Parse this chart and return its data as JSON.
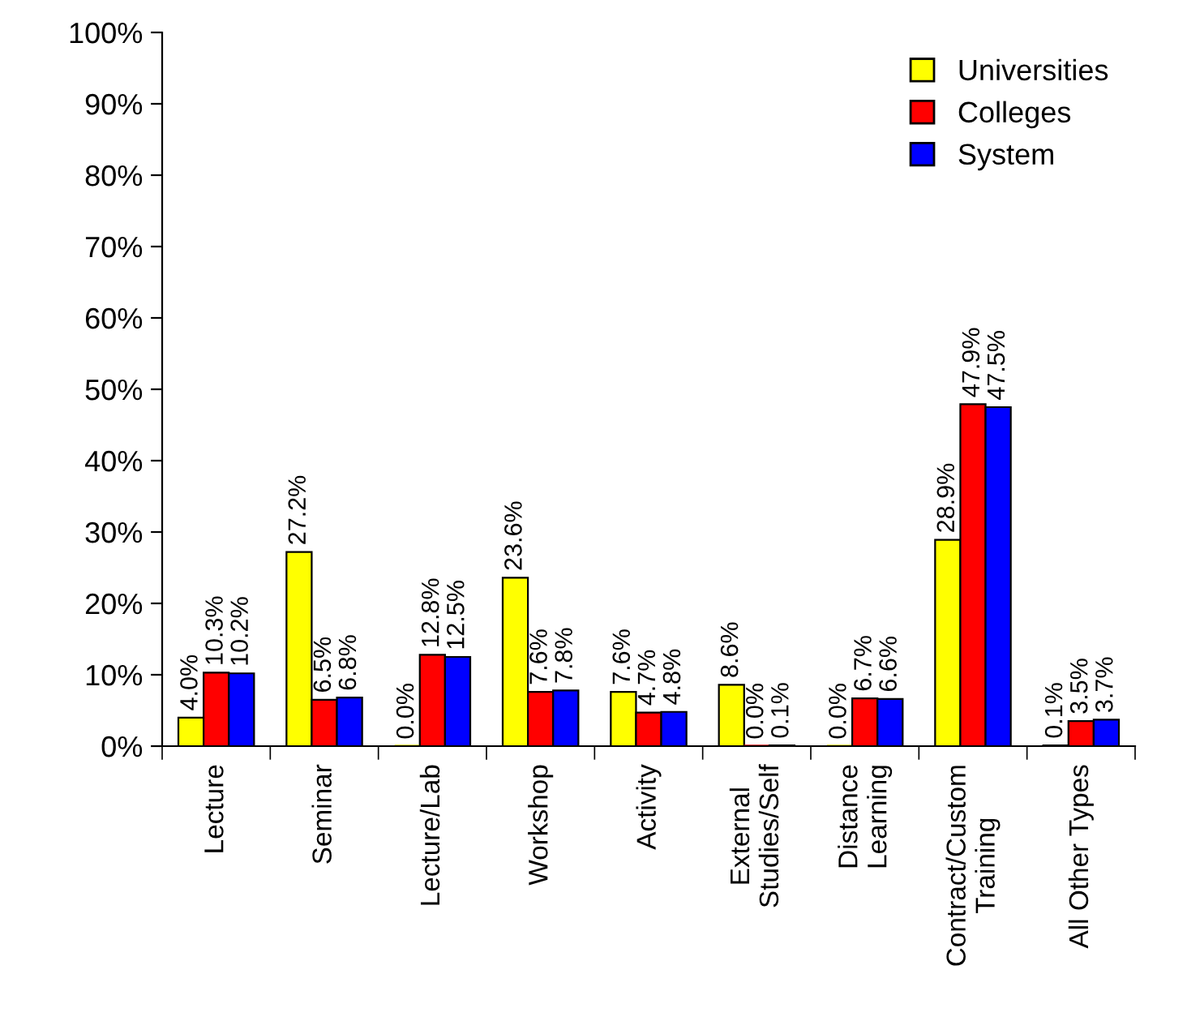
{
  "chart_data": {
    "type": "bar",
    "categories": [
      "Lecture",
      "Seminar",
      "Lecture/Lab",
      "Workshop",
      "Activity",
      "External\nStudies/Self",
      "Distance\nLearning",
      "Contract/Custom\nTraining",
      "All Other Types"
    ],
    "series": [
      {
        "name": "Universities",
        "color": "#ffff00",
        "values": [
          4.0,
          27.2,
          0.0,
          23.6,
          7.6,
          8.6,
          0.0,
          28.9,
          0.1
        ],
        "value_labels": [
          "4.0%",
          "27.2%",
          "0.0%",
          "23.6%",
          "7.6%",
          "8.6%",
          "0.0%",
          "28.9%",
          "0.1%"
        ]
      },
      {
        "name": "Colleges",
        "color": "#ff0000",
        "values": [
          10.3,
          6.5,
          12.8,
          7.6,
          4.7,
          0.0,
          6.7,
          47.9,
          3.5
        ],
        "value_labels": [
          "10.3%",
          "6.5%",
          "12.8%",
          "7.6%",
          "4.7%",
          "0.0%",
          "6.7%",
          "47.9%",
          "3.5%"
        ]
      },
      {
        "name": "System",
        "color": "#0000ff",
        "values": [
          10.2,
          6.8,
          12.5,
          7.8,
          4.8,
          0.1,
          6.6,
          47.5,
          3.7
        ],
        "value_labels": [
          "10.2%",
          "6.8%",
          "12.5%",
          "7.8%",
          "4.8%",
          "0.1%",
          "6.6%",
          "47.5%",
          "3.7%"
        ]
      }
    ],
    "ylim": [
      0,
      100
    ],
    "yticks": [
      {
        "value": 0,
        "label": "0%"
      },
      {
        "value": 10,
        "label": "10%"
      },
      {
        "value": 20,
        "label": "20%"
      },
      {
        "value": 30,
        "label": "30%"
      },
      {
        "value": 40,
        "label": "40%"
      },
      {
        "value": 50,
        "label": "50%"
      },
      {
        "value": 60,
        "label": "60%"
      },
      {
        "value": 70,
        "label": "70%"
      },
      {
        "value": 80,
        "label": "80%"
      },
      {
        "value": 90,
        "label": "90%"
      },
      {
        "value": 100,
        "label": "100%"
      }
    ],
    "grid": false,
    "legend": "top right"
  }
}
